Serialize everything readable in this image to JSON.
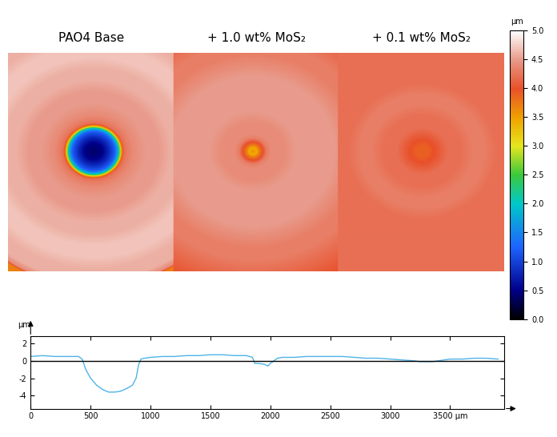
{
  "chart_data": [
    {
      "type": "surface",
      "labels": [
        "PAO4 Base",
        "+ 1.0 wt% MoS₂",
        "+ 0.1 wt% MoS₂"
      ],
      "scar_centers": [
        680,
        1950,
        3300
      ],
      "reference_level": 4.0,
      "colorbar": {
        "label": "µm",
        "range": [
          0,
          5
        ],
        "ticks": [
          {
            "value": 0,
            "label": "0.0"
          },
          {
            "value": 0.5,
            "label": "0.5"
          },
          {
            "value": 1,
            "label": "1.0"
          },
          {
            "value": 1.5,
            "label": "1.5"
          },
          {
            "value": 2,
            "label": "2.0"
          },
          {
            "value": 2.5,
            "label": "2.5"
          },
          {
            "value": 3,
            "label": "3.0"
          },
          {
            "value": 3.5,
            "label": "3.5"
          },
          {
            "value": 4,
            "label": "4.0"
          },
          {
            "value": 4.5,
            "label": "4.5"
          },
          {
            "value": 5,
            "label": "5.0"
          }
        ]
      }
    },
    {
      "type": "line",
      "ylabel": "µm",
      "x": [
        0,
        100,
        200,
        300,
        400,
        430,
        460,
        500,
        550,
        600,
        650,
        700,
        750,
        800,
        850,
        880,
        900,
        920,
        950,
        1000,
        1100,
        1200,
        1300,
        1400,
        1500,
        1600,
        1700,
        1800,
        1850,
        1870,
        1900,
        1950,
        1980,
        2000,
        2030,
        2060,
        2100,
        2200,
        2300,
        2400,
        2500,
        2600,
        2700,
        2800,
        2900,
        3000,
        3100,
        3200,
        3250,
        3300,
        3350,
        3400,
        3500,
        3600,
        3700,
        3800,
        3900
      ],
      "values": [
        0.5,
        0.6,
        0.5,
        0.5,
        0.5,
        0.2,
        -1.0,
        -2.0,
        -2.8,
        -3.3,
        -3.6,
        -3.6,
        -3.5,
        -3.2,
        -2.8,
        -2.0,
        -0.5,
        0.2,
        0.3,
        0.4,
        0.5,
        0.5,
        0.6,
        0.6,
        0.7,
        0.7,
        0.6,
        0.6,
        0.4,
        -0.3,
        -0.3,
        -0.4,
        -0.6,
        -0.3,
        0.0,
        0.3,
        0.4,
        0.4,
        0.5,
        0.5,
        0.5,
        0.5,
        0.4,
        0.3,
        0.3,
        0.2,
        0.1,
        0.0,
        -0.1,
        -0.1,
        -0.1,
        0.0,
        0.2,
        0.2,
        0.3,
        0.3,
        0.2
      ],
      "color": "#4fb3e8",
      "reference_line": 0,
      "xlim": [
        0,
        3950
      ],
      "xticks": [
        0,
        500,
        1000,
        1500,
        2000,
        2500,
        3000,
        {
          "value": 3500,
          "label": "3500 µm"
        }
      ],
      "ylim": [
        -5.5,
        2.8
      ],
      "yticks": [
        -4,
        -2,
        0,
        2
      ],
      "grid": false
    }
  ]
}
